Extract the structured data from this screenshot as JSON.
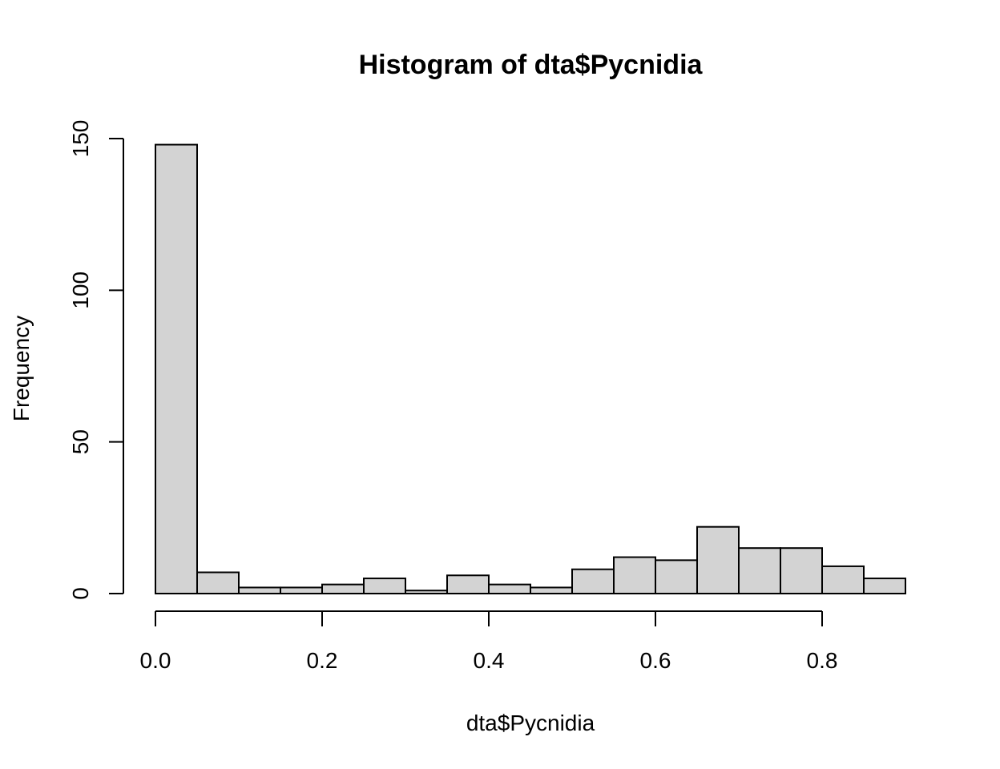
{
  "chart_data": {
    "type": "bar",
    "title": "Histogram of dta$Pycnidia",
    "xlabel": "dta$Pycnidia",
    "ylabel": "Frequency",
    "bin_width": 0.05,
    "bins": [
      {
        "x0": 0.0,
        "x1": 0.05,
        "count": 148
      },
      {
        "x0": 0.05,
        "x1": 0.1,
        "count": 7
      },
      {
        "x0": 0.1,
        "x1": 0.15,
        "count": 2
      },
      {
        "x0": 0.15,
        "x1": 0.2,
        "count": 2
      },
      {
        "x0": 0.2,
        "x1": 0.25,
        "count": 3
      },
      {
        "x0": 0.25,
        "x1": 0.3,
        "count": 5
      },
      {
        "x0": 0.3,
        "x1": 0.35,
        "count": 1
      },
      {
        "x0": 0.35,
        "x1": 0.4,
        "count": 6
      },
      {
        "x0": 0.4,
        "x1": 0.45,
        "count": 3
      },
      {
        "x0": 0.45,
        "x1": 0.5,
        "count": 2
      },
      {
        "x0": 0.5,
        "x1": 0.55,
        "count": 8
      },
      {
        "x0": 0.55,
        "x1": 0.6,
        "count": 12
      },
      {
        "x0": 0.6,
        "x1": 0.65,
        "count": 11
      },
      {
        "x0": 0.65,
        "x1": 0.7,
        "count": 22
      },
      {
        "x0": 0.7,
        "x1": 0.75,
        "count": 15
      },
      {
        "x0": 0.75,
        "x1": 0.8,
        "count": 15
      },
      {
        "x0": 0.8,
        "x1": 0.85,
        "count": 9
      },
      {
        "x0": 0.85,
        "x1": 0.9,
        "count": 5
      }
    ],
    "xticks": [
      {
        "value": 0.0,
        "label": "0.0"
      },
      {
        "value": 0.2,
        "label": "0.2"
      },
      {
        "value": 0.4,
        "label": "0.4"
      },
      {
        "value": 0.6,
        "label": "0.6"
      },
      {
        "value": 0.8,
        "label": "0.8"
      }
    ],
    "yticks": [
      {
        "value": 0,
        "label": "0"
      },
      {
        "value": 50,
        "label": "50"
      },
      {
        "value": 100,
        "label": "100"
      },
      {
        "value": 150,
        "label": "150"
      }
    ],
    "xlim": [
      0.0,
      0.9
    ],
    "ylim": [
      0,
      150
    ],
    "grid": false,
    "bar_color": "#d3d3d3",
    "edge_color": "#000000"
  }
}
